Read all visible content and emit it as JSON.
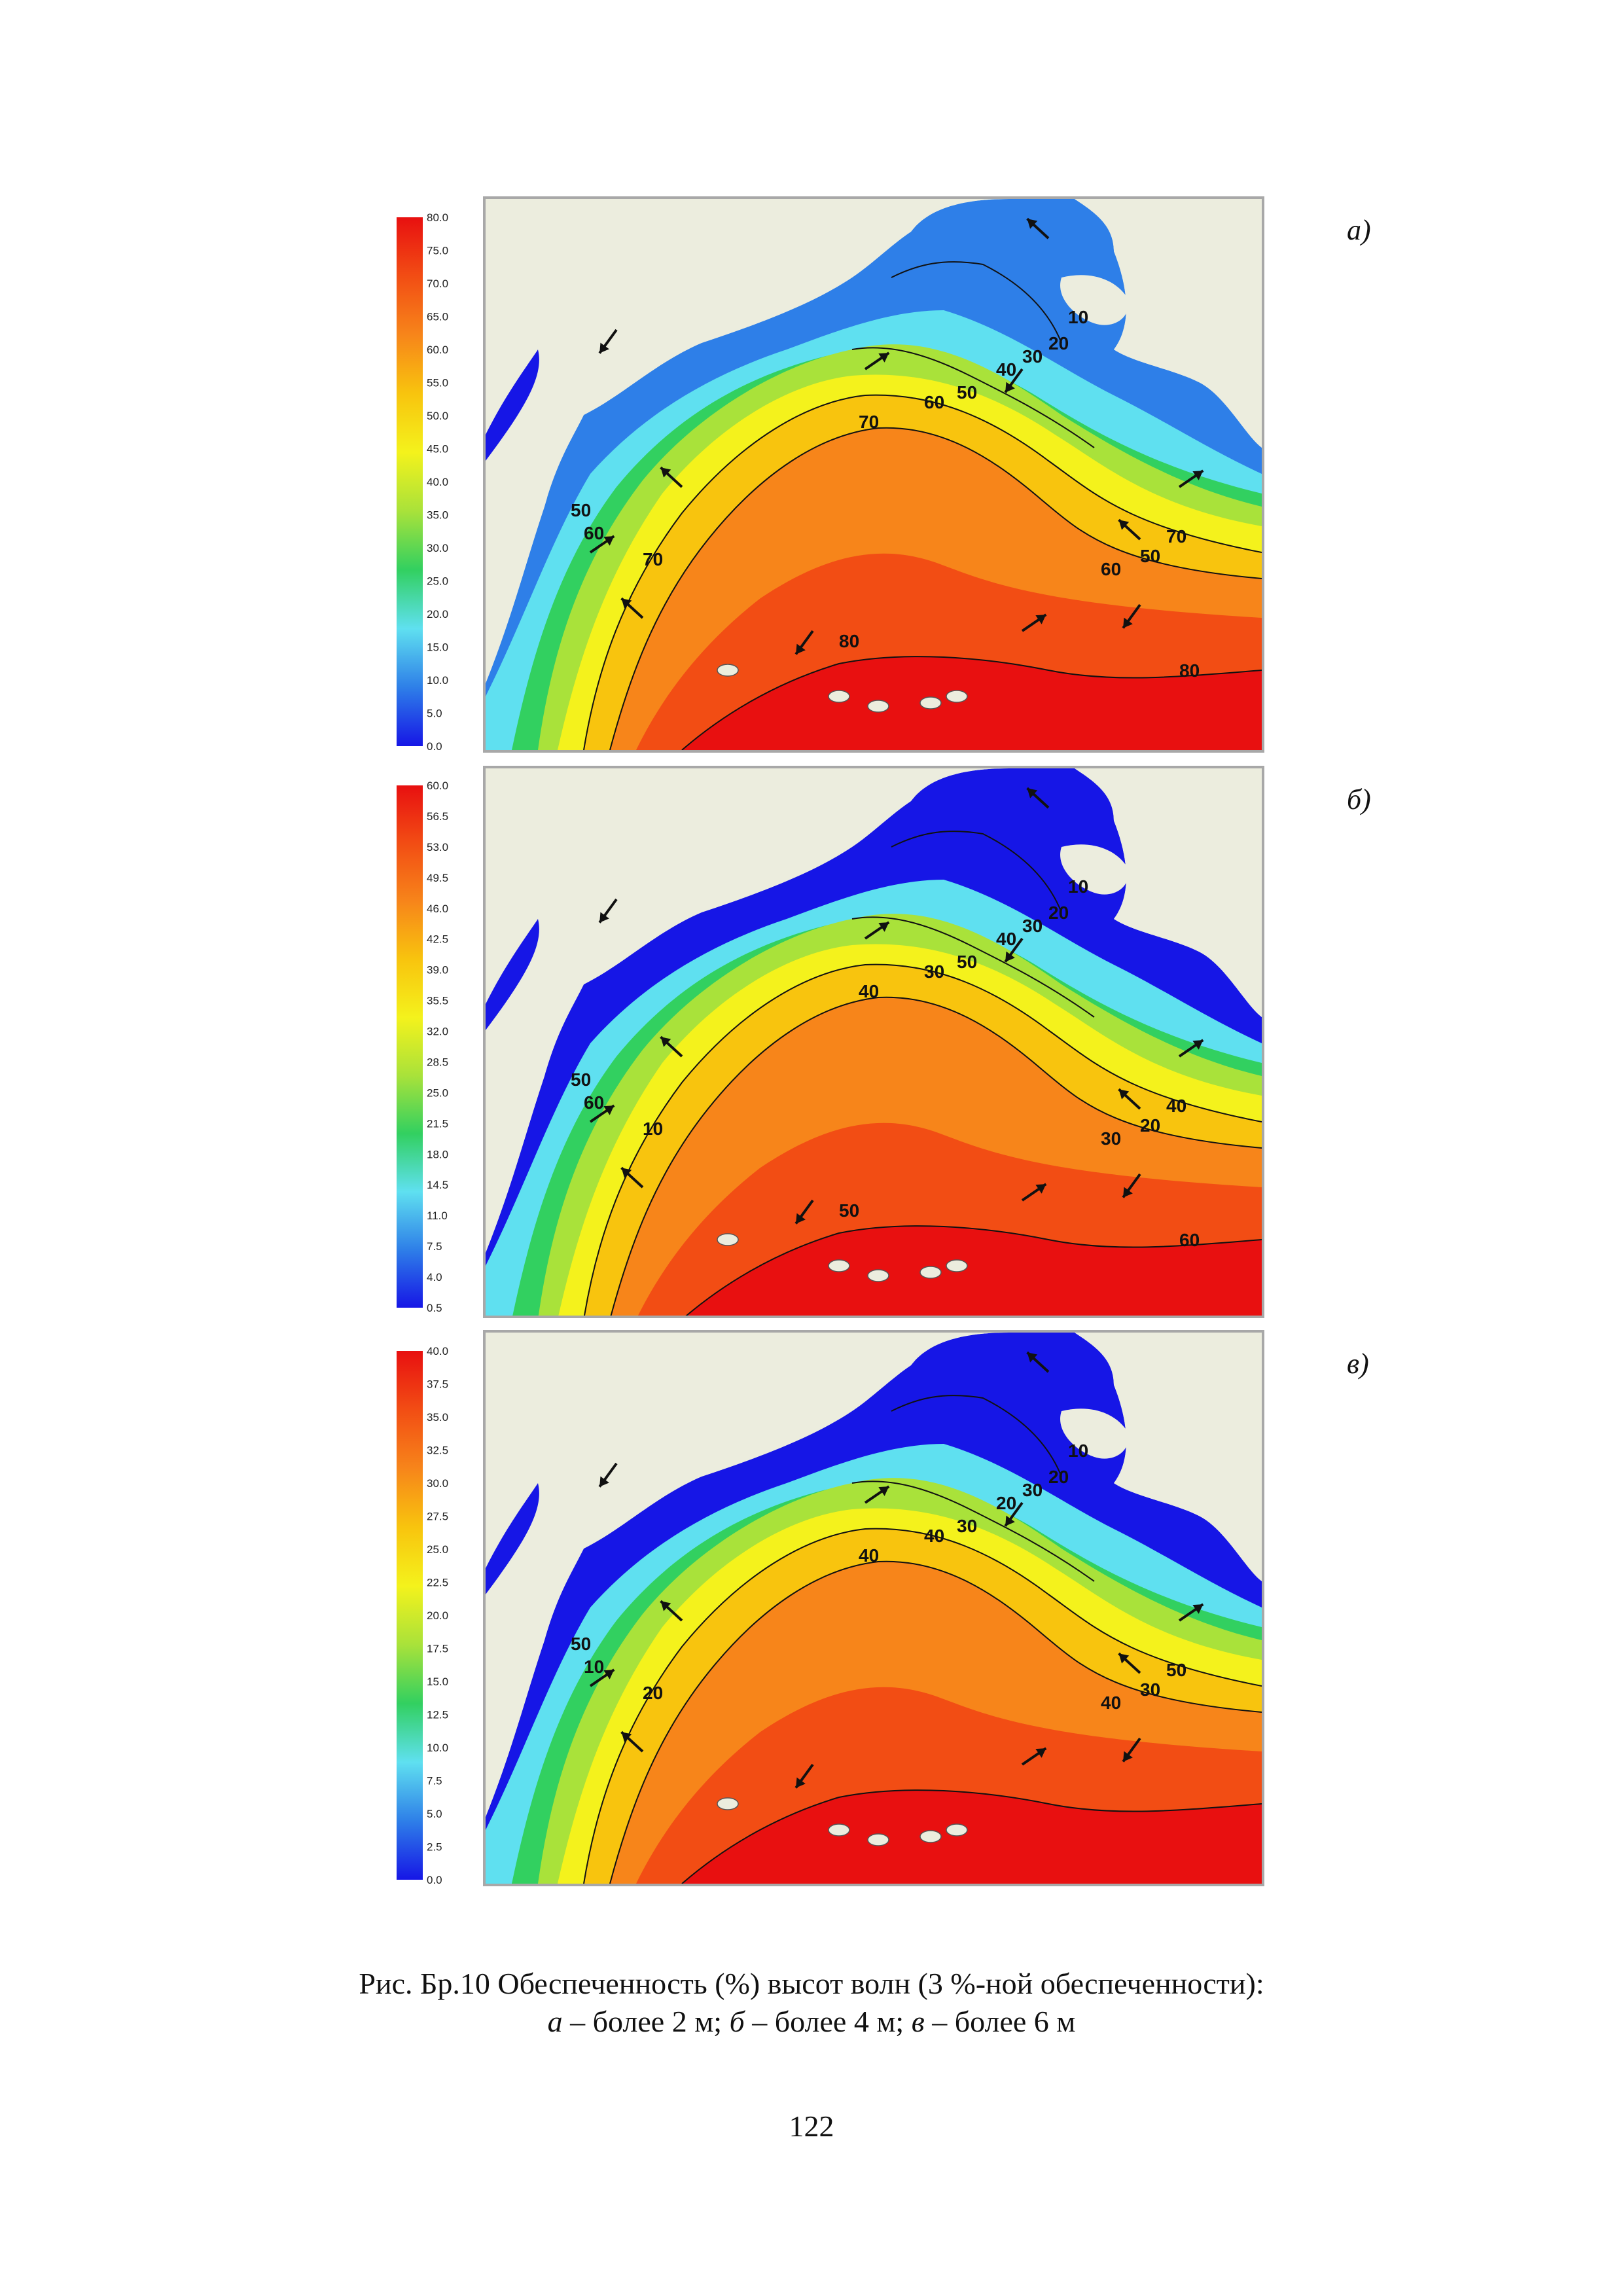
{
  "panels": [
    {
      "label": "а)",
      "colorbar_ticks": [
        "80.0",
        "75.0",
        "70.0",
        "65.0",
        "60.0",
        "55.0",
        "50.0",
        "45.0",
        "40.0",
        "35.0",
        "30.0",
        "25.0",
        "20.0",
        "15.0",
        "10.0",
        "5.0",
        "0.0"
      ],
      "contour_labels": [
        "10",
        "20",
        "30",
        "40",
        "50",
        "60",
        "70",
        "50",
        "60",
        "70",
        "50",
        "60",
        "70",
        "80",
        "80"
      ]
    },
    {
      "label": "б)",
      "colorbar_ticks": [
        "60.0",
        "56.5",
        "53.0",
        "49.5",
        "46.0",
        "42.5",
        "39.0",
        "35.5",
        "32.0",
        "28.5",
        "25.0",
        "21.5",
        "18.0",
        "14.5",
        "11.0",
        "7.5",
        "4.0",
        "0.5"
      ],
      "contour_labels": [
        "10",
        "20",
        "30",
        "40",
        "50",
        "30",
        "40",
        "50",
        "60",
        "10",
        "20",
        "30",
        "40",
        "50",
        "60"
      ]
    },
    {
      "label": "в)",
      "colorbar_ticks": [
        "40.0",
        "37.5",
        "35.0",
        "32.5",
        "30.0",
        "27.5",
        "25.0",
        "22.5",
        "20.0",
        "17.5",
        "15.0",
        "12.5",
        "10.0",
        "7.5",
        "5.0",
        "2.5",
        "0.0"
      ],
      "contour_labels": [
        "10",
        "20",
        "30",
        "20",
        "30",
        "40",
        "40",
        "50",
        "10",
        "20",
        "30",
        "40",
        "50"
      ]
    }
  ],
  "caption": {
    "line1": "Рис. Бр.10 Обеспеченность (%) высот волн (3 %-ной обеспеченности):",
    "line2_a": "а",
    "line2_a_text": " – более 2 м; ",
    "line2_b": "б",
    "line2_b_text": " – более 4 м; ",
    "line2_c": "в",
    "line2_c_text": " – более 6 м"
  },
  "page_number": "122",
  "colors": {
    "land": "#ecedde",
    "ramp": [
      "#1616e6",
      "#2e7fe8",
      "#5fe0f0",
      "#32d060",
      "#a9e23a",
      "#f4f21c",
      "#f8c40e",
      "#f7851a",
      "#f24d14",
      "#e81010"
    ]
  }
}
